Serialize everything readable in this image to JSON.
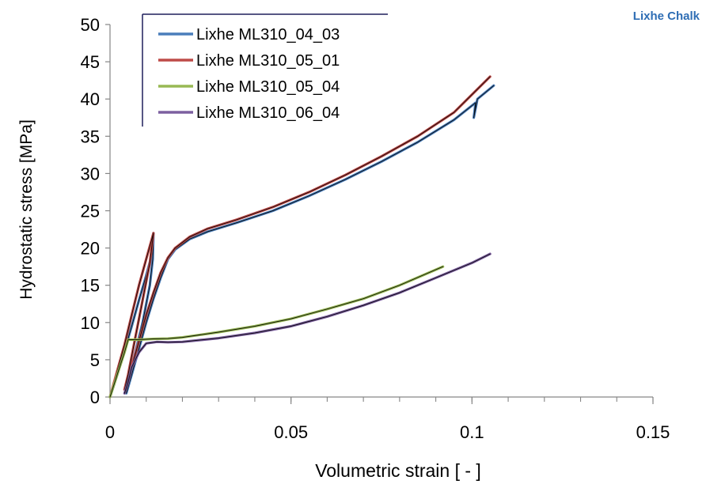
{
  "chart_data": {
    "type": "line",
    "title": "Lixhe Chalk",
    "xlabel": "Volumetric strain  [ - ]",
    "ylabel": "Hydrostatic stress  [MPa]",
    "xlim": [
      0,
      0.15
    ],
    "ylim": [
      0,
      50
    ],
    "x_ticks": [
      0,
      0.05,
      0.1,
      0.15
    ],
    "x_tick_labels": [
      "0",
      "0.05",
      "0.1",
      "0.15"
    ],
    "x_minor_step": 0.01,
    "y_ticks": [
      0,
      5,
      10,
      15,
      20,
      25,
      30,
      35,
      40,
      45,
      50
    ],
    "y_tick_labels": [
      "0",
      "5",
      "10",
      "15",
      "20",
      "25",
      "30",
      "35",
      "40",
      "45",
      "50"
    ],
    "grid": false,
    "legend_position": "top-left",
    "model_fit_color": "#000000",
    "series": [
      {
        "name": "Lixhe ML310_04_03",
        "color": "#4a7ebb",
        "points": [
          [
            0,
            0
          ],
          [
            0.002,
            3
          ],
          [
            0.004,
            6.2
          ],
          [
            0.006,
            9.5
          ],
          [
            0.008,
            13
          ],
          [
            0.01,
            16.3
          ],
          [
            0.0115,
            19
          ],
          [
            0.012,
            22
          ],
          [
            0.0118,
            18.5
          ],
          [
            0.011,
            15
          ],
          [
            0.009,
            10
          ],
          [
            0.007,
            6
          ],
          [
            0.005,
            2
          ],
          [
            0.0045,
            0.5
          ],
          [
            0.006,
            3
          ],
          [
            0.008,
            6.5
          ],
          [
            0.01,
            10
          ],
          [
            0.012,
            13.2
          ],
          [
            0.014,
            16
          ],
          [
            0.016,
            18.5
          ],
          [
            0.018,
            19.8
          ],
          [
            0.022,
            21.2
          ],
          [
            0.027,
            22.2
          ],
          [
            0.035,
            23.4
          ],
          [
            0.045,
            25
          ],
          [
            0.055,
            27
          ],
          [
            0.065,
            29.2
          ],
          [
            0.075,
            31.6
          ],
          [
            0.085,
            34.2
          ],
          [
            0.095,
            37.2
          ],
          [
            0.101,
            39.5
          ],
          [
            0.1005,
            37.5
          ],
          [
            0.1015,
            40
          ],
          [
            0.106,
            41.8
          ]
        ]
      },
      {
        "name": "Lixhe ML310_05_01",
        "color": "#be4b48",
        "points": [
          [
            0,
            0
          ],
          [
            0.002,
            3.5
          ],
          [
            0.004,
            7
          ],
          [
            0.006,
            11
          ],
          [
            0.008,
            15
          ],
          [
            0.01,
            18.5
          ],
          [
            0.012,
            22
          ],
          [
            0.011,
            18
          ],
          [
            0.009,
            13
          ],
          [
            0.007,
            8
          ],
          [
            0.005,
            3
          ],
          [
            0.004,
            1
          ],
          [
            0.006,
            4
          ],
          [
            0.008,
            7.5
          ],
          [
            0.01,
            11
          ],
          [
            0.012,
            14
          ],
          [
            0.014,
            16.7
          ],
          [
            0.016,
            18.7
          ],
          [
            0.018,
            20
          ],
          [
            0.022,
            21.5
          ],
          [
            0.027,
            22.6
          ],
          [
            0.035,
            23.8
          ],
          [
            0.045,
            25.5
          ],
          [
            0.055,
            27.5
          ],
          [
            0.065,
            29.8
          ],
          [
            0.075,
            32.3
          ],
          [
            0.085,
            35
          ],
          [
            0.095,
            38.2
          ],
          [
            0.105,
            43
          ]
        ]
      },
      {
        "name": "Lixhe ML310_05_04",
        "color": "#98b954",
        "points": [
          [
            0,
            0
          ],
          [
            0.002,
            3
          ],
          [
            0.004,
            6
          ],
          [
            0.005,
            7.7
          ],
          [
            0.008,
            7.7
          ],
          [
            0.012,
            7.8
          ],
          [
            0.016,
            7.85
          ],
          [
            0.02,
            8
          ],
          [
            0.03,
            8.7
          ],
          [
            0.04,
            9.5
          ],
          [
            0.05,
            10.5
          ],
          [
            0.06,
            11.8
          ],
          [
            0.07,
            13.2
          ],
          [
            0.08,
            15
          ],
          [
            0.092,
            17.5
          ]
        ]
      },
      {
        "name": "Lixhe ML310_06_04",
        "color": "#7d60a0",
        "points": [
          [
            0.004,
            0.5
          ],
          [
            0.005,
            2
          ],
          [
            0.006,
            4
          ],
          [
            0.008,
            6
          ],
          [
            0.01,
            7.2
          ],
          [
            0.013,
            7.4
          ],
          [
            0.016,
            7.35
          ],
          [
            0.02,
            7.4
          ],
          [
            0.03,
            7.9
          ],
          [
            0.04,
            8.6
          ],
          [
            0.05,
            9.5
          ],
          [
            0.06,
            10.8
          ],
          [
            0.07,
            12.3
          ],
          [
            0.08,
            14
          ],
          [
            0.09,
            16
          ],
          [
            0.1,
            18
          ],
          [
            0.105,
            19.2
          ]
        ]
      }
    ]
  }
}
